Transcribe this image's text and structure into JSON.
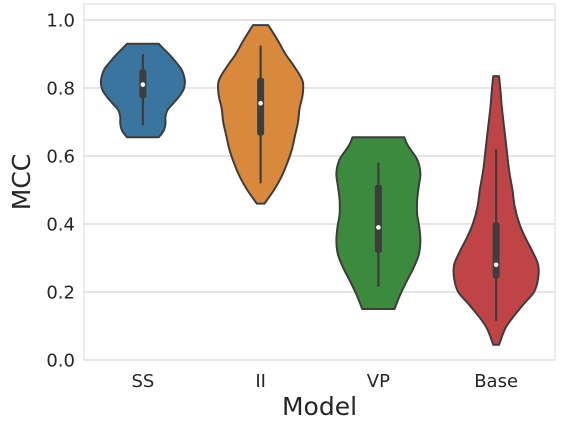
{
  "chart_data": {
    "type": "violin",
    "title": "",
    "xlabel": "Model",
    "ylabel": "MCC",
    "ylim": [
      0.0,
      1.0
    ],
    "y_ticks": [
      "0.0",
      "0.2",
      "0.4",
      "0.6",
      "0.8",
      "1.0"
    ],
    "grid": "horizontal",
    "categories": [
      "SS",
      "II",
      "VP",
      "Base"
    ],
    "series": [
      {
        "category": "SS",
        "color": "#3a75a0",
        "min": 0.655,
        "max": 0.93,
        "q1": 0.77,
        "median": 0.81,
        "q3": 0.855,
        "whisker_low": 0.69,
        "whisker_high": 0.9,
        "density": [
          [
            0.655,
            0.55
          ],
          [
            0.675,
            0.72
          ],
          [
            0.695,
            0.78
          ],
          [
            0.715,
            0.78
          ],
          [
            0.735,
            0.85
          ],
          [
            0.755,
            1.05
          ],
          [
            0.775,
            1.25
          ],
          [
            0.795,
            1.4
          ],
          [
            0.815,
            1.45
          ],
          [
            0.835,
            1.42
          ],
          [
            0.855,
            1.33
          ],
          [
            0.875,
            1.15
          ],
          [
            0.895,
            0.95
          ],
          [
            0.915,
            0.72
          ],
          [
            0.93,
            0.55
          ]
        ]
      },
      {
        "category": "II",
        "color": "#d8893b",
        "min": 0.46,
        "max": 0.985,
        "q1": 0.66,
        "median": 0.755,
        "q3": 0.83,
        "whisker_low": 0.52,
        "whisker_high": 0.925,
        "density": [
          [
            0.46,
            0.1
          ],
          [
            0.5,
            0.35
          ],
          [
            0.54,
            0.55
          ],
          [
            0.58,
            0.7
          ],
          [
            0.62,
            0.82
          ],
          [
            0.66,
            0.9
          ],
          [
            0.7,
            0.98
          ],
          [
            0.74,
            1.02
          ],
          [
            0.78,
            1.1
          ],
          [
            0.82,
            1.1
          ],
          [
            0.86,
            0.9
          ],
          [
            0.9,
            0.65
          ],
          [
            0.94,
            0.45
          ],
          [
            0.985,
            0.2
          ]
        ]
      },
      {
        "category": "VP",
        "color": "#3b8a3e",
        "min": 0.15,
        "max": 0.655,
        "q1": 0.315,
        "median": 0.39,
        "q3": 0.515,
        "whisker_low": 0.215,
        "whisker_high": 0.58,
        "density": [
          [
            0.15,
            0.3
          ],
          [
            0.19,
            0.4
          ],
          [
            0.23,
            0.52
          ],
          [
            0.27,
            0.65
          ],
          [
            0.31,
            0.75
          ],
          [
            0.35,
            0.78
          ],
          [
            0.39,
            0.76
          ],
          [
            0.43,
            0.72
          ],
          [
            0.47,
            0.72
          ],
          [
            0.51,
            0.75
          ],
          [
            0.55,
            0.78
          ],
          [
            0.59,
            0.72
          ],
          [
            0.63,
            0.55
          ],
          [
            0.655,
            0.48
          ]
        ]
      },
      {
        "category": "Base",
        "color": "#c04446",
        "min": 0.045,
        "max": 0.835,
        "q1": 0.24,
        "median": 0.28,
        "q3": 0.405,
        "whisker_low": 0.115,
        "whisker_high": 0.62,
        "density": [
          [
            0.045,
            0.05
          ],
          [
            0.1,
            0.18
          ],
          [
            0.16,
            0.45
          ],
          [
            0.2,
            0.65
          ],
          [
            0.24,
            0.72
          ],
          [
            0.28,
            0.72
          ],
          [
            0.32,
            0.62
          ],
          [
            0.36,
            0.5
          ],
          [
            0.4,
            0.4
          ],
          [
            0.45,
            0.32
          ],
          [
            0.5,
            0.28
          ],
          [
            0.56,
            0.22
          ],
          [
            0.62,
            0.18
          ],
          [
            0.68,
            0.14
          ],
          [
            0.74,
            0.1
          ],
          [
            0.8,
            0.07
          ],
          [
            0.835,
            0.05
          ]
        ]
      }
    ]
  }
}
